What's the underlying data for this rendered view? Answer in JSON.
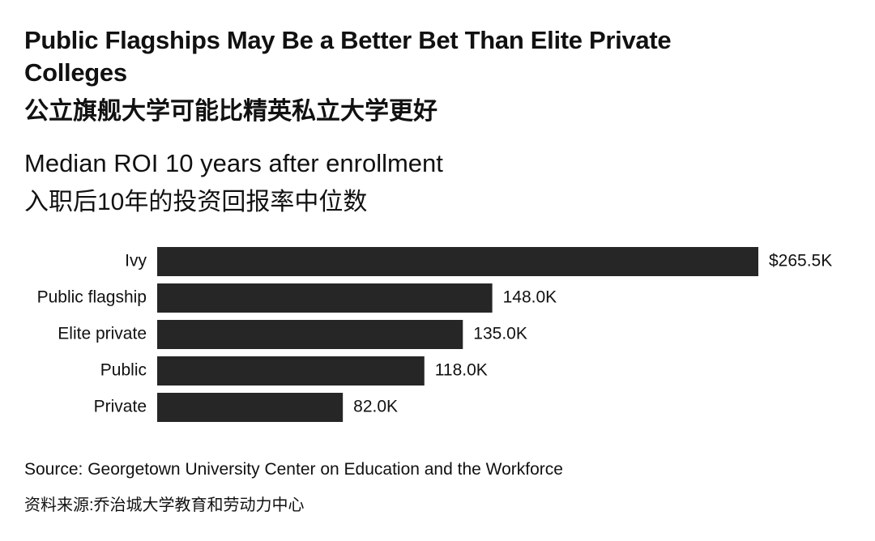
{
  "chart_data": {
    "type": "bar",
    "orientation": "horizontal",
    "title": "Public Flagships May Be a Better Bet Than Elite Private Colleges",
    "title_cn": "公立旗舰大学可能比精英私立大学更好",
    "subtitle": "Median ROI 10 years after enrollment",
    "subtitle_cn": "入职后10年的投资回报率中位数",
    "categories": [
      "Ivy",
      "Public flagship",
      "Elite private",
      "Public",
      "Private"
    ],
    "values": [
      265.5,
      148.0,
      135.0,
      118.0,
      82.0
    ],
    "value_labels": [
      "$265.5K",
      "148.0K",
      "135.0K",
      "118.0K",
      "82.0K"
    ],
    "color": "#262626",
    "source": "Source: Georgetown University Center on Education and the Workforce",
    "source_cn": "资料来源:乔治城大学教育和劳动力中心"
  }
}
